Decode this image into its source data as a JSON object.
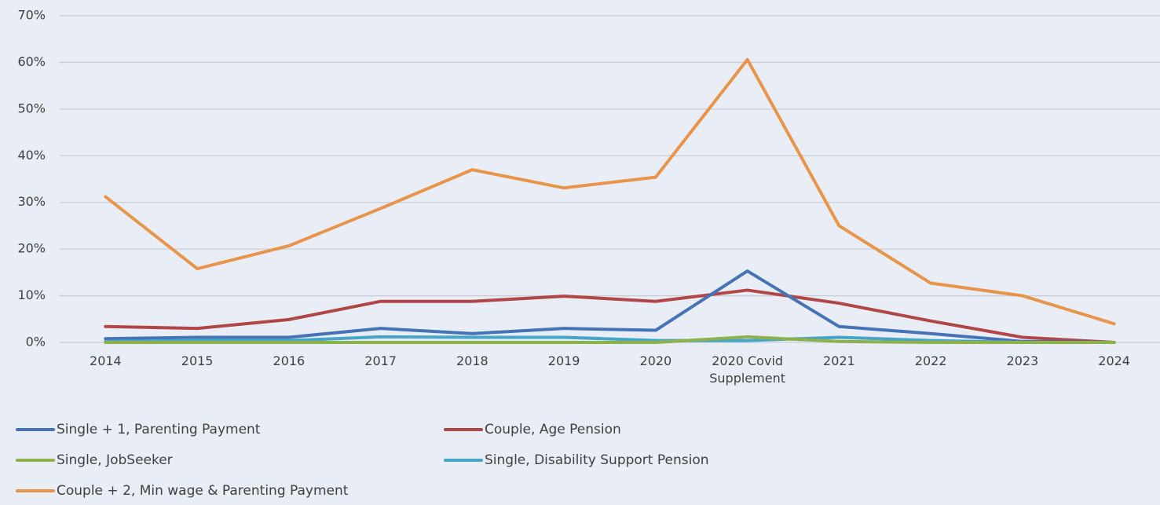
{
  "chart_data": {
    "type": "line",
    "categories": [
      "2014",
      "2015",
      "2016",
      "2017",
      "2018",
      "2019",
      "2020",
      "2020 Covid Supplement",
      "2021",
      "2022",
      "2023",
      "2024"
    ],
    "series": [
      {
        "name": "Single + 1,  Parenting Payment",
        "color": "#4673b5",
        "values": [
          0.8,
          1.1,
          1.1,
          3.0,
          1.9,
          3.0,
          2.6,
          15.3,
          3.4,
          1.9,
          0.2,
          0
        ]
      },
      {
        "name": "Couple, Age Pension",
        "color": "#b04646",
        "values": [
          3.4,
          3.0,
          4.9,
          8.8,
          8.8,
          9.9,
          8.8,
          11.2,
          8.4,
          4.6,
          1.1,
          0
        ]
      },
      {
        "name": "Single, JobSeeker",
        "color": "#8db14b",
        "values": [
          0,
          0,
          0,
          0,
          0,
          0,
          0,
          1.2,
          0.2,
          0,
          0,
          0
        ]
      },
      {
        "name": "Single, Disability Support Pension",
        "color": "#46a5c8",
        "values": [
          0.2,
          0.4,
          0.4,
          1.2,
          1.1,
          1.1,
          0.4,
          0.4,
          1.1,
          0.4,
          0,
          0
        ]
      },
      {
        "name": "Couple + 2, Min wage & Parenting Payment",
        "color": "#e8944a",
        "values": [
          31.2,
          15.8,
          20.7,
          28.7,
          37.0,
          33.1,
          35.4,
          60.6,
          25.0,
          12.7,
          10.0,
          4.0
        ]
      }
    ],
    "ylim": [
      0,
      70
    ],
    "yticks": [
      {
        "value": 0,
        "label": "0%"
      },
      {
        "value": 10,
        "label": "10%"
      },
      {
        "value": 20,
        "label": "20%"
      },
      {
        "value": 30,
        "label": "30%"
      },
      {
        "value": 40,
        "label": "40%"
      },
      {
        "value": 50,
        "label": "50%"
      },
      {
        "value": 60,
        "label": "60%"
      },
      {
        "value": 70,
        "label": "70%"
      }
    ],
    "grid": true,
    "legend": "bottom"
  }
}
